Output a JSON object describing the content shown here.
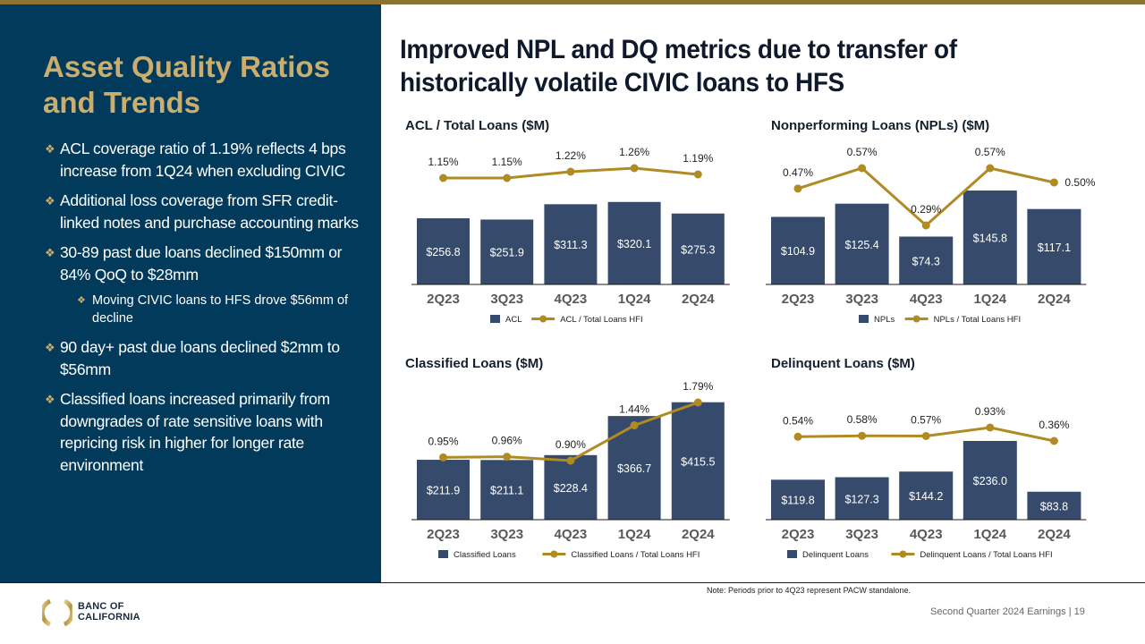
{
  "sidebar": {
    "title": "Asset Quality Ratios and Trends",
    "bullets": [
      {
        "text": "ACL coverage ratio of 1.19% reflects 4 bps increase from 1Q24 when excluding CIVIC",
        "level": 1
      },
      {
        "text": "Additional loss coverage from SFR credit-linked notes and purchase accounting marks",
        "level": 1
      },
      {
        "text": "30-89 past due loans declined $150mm or 84% QoQ to $28mm",
        "level": 1
      },
      {
        "text": "Moving CIVIC loans to HFS drove $56mm of decline",
        "level": 2
      },
      {
        "text": "90 day+ past due loans declined $2mm to $56mm",
        "level": 1
      },
      {
        "text": "Classified loans increased primarily from downgrades of rate sensitive loans with repricing risk in higher for longer rate environment",
        "level": 1
      }
    ],
    "bullet_glyph": "❖"
  },
  "main": {
    "title": "Improved NPL and DQ metrics due to transfer of historically volatile CIVIC loans to HFS"
  },
  "colors": {
    "bar": "#364B6B",
    "line": "#B08B23",
    "sidebar_bg": "#023A5B",
    "accent_gold": "#CBAE6E"
  },
  "chart_data": [
    {
      "type": "bar",
      "title": "ACL / Total Loans ($M)",
      "categories": [
        "2Q23",
        "3Q23",
        "4Q23",
        "1Q24",
        "2Q24"
      ],
      "series": [
        {
          "name": "ACL",
          "type": "bar",
          "values": [
            256.8,
            251.9,
            311.3,
            320.1,
            275.3
          ],
          "labels": [
            "$256.8",
            "$251.9",
            "$311.3",
            "$320.1",
            "$275.3"
          ]
        },
        {
          "name": "ACL / Total Loans HFI",
          "type": "line",
          "values": [
            1.15,
            1.15,
            1.22,
            1.26,
            1.19
          ],
          "labels": [
            "1.15%",
            "1.15%",
            "1.22%",
            "1.26%",
            "1.19%"
          ]
        }
      ],
      "legend": "bottom"
    },
    {
      "type": "bar",
      "title": "Nonperforming Loans (NPLs) ($M)",
      "categories": [
        "2Q23",
        "3Q23",
        "4Q23",
        "1Q24",
        "2Q24"
      ],
      "series": [
        {
          "name": "NPLs",
          "type": "bar",
          "values": [
            104.9,
            125.4,
            74.3,
            145.8,
            117.1
          ],
          "labels": [
            "$104.9",
            "$125.4",
            "$74.3",
            "$145.8",
            "$117.1"
          ]
        },
        {
          "name": "NPLs / Total Loans HFI",
          "type": "line",
          "values": [
            0.47,
            0.57,
            0.29,
            0.57,
            0.5
          ],
          "labels": [
            "0.47%",
            "0.57%",
            "0.29%",
            "0.57%",
            "0.50%"
          ]
        }
      ],
      "legend": "bottom"
    },
    {
      "type": "bar",
      "title": "Classified Loans ($M)",
      "categories": [
        "2Q23",
        "3Q23",
        "4Q23",
        "1Q24",
        "2Q24"
      ],
      "series": [
        {
          "name": "Classified Loans",
          "type": "bar",
          "values": [
            211.9,
            211.1,
            228.4,
            366.7,
            415.5
          ],
          "labels": [
            "$211.9",
            "$211.1",
            "$228.4",
            "$366.7",
            "$415.5"
          ]
        },
        {
          "name": "Classified Loans / Total Loans HFI",
          "type": "line",
          "values": [
            0.95,
            0.96,
            0.9,
            1.44,
            1.79
          ],
          "labels": [
            "0.95%",
            "0.96%",
            "0.90%",
            "1.44%",
            "1.79%"
          ]
        }
      ],
      "legend": "bottom"
    },
    {
      "type": "bar",
      "title": "Delinquent Loans ($M)",
      "categories": [
        "2Q23",
        "3Q23",
        "4Q23",
        "1Q24",
        "2Q24"
      ],
      "series": [
        {
          "name": "Delinquent Loans",
          "type": "bar",
          "values": [
            119.8,
            127.3,
            144.2,
            236.0,
            83.8
          ],
          "labels": [
            "$119.8",
            "$127.3",
            "$144.2",
            "$236.0",
            "$83.8"
          ]
        },
        {
          "name": "Delinquent Loans / Total Loans HFI",
          "type": "line",
          "values": [
            0.54,
            0.58,
            0.57,
            0.93,
            0.36
          ],
          "labels": [
            "0.54%",
            "0.58%",
            "0.57%",
            "0.93%",
            "0.36%"
          ]
        }
      ],
      "legend": "bottom"
    }
  ],
  "footer": {
    "note": "Note: Periods prior to 4Q23 represent PACW standalone.",
    "page_label": "Second Quarter 2024 Earnings |  19",
    "logo_line1": "BANC OF",
    "logo_line2": "CALIFORNIA"
  }
}
